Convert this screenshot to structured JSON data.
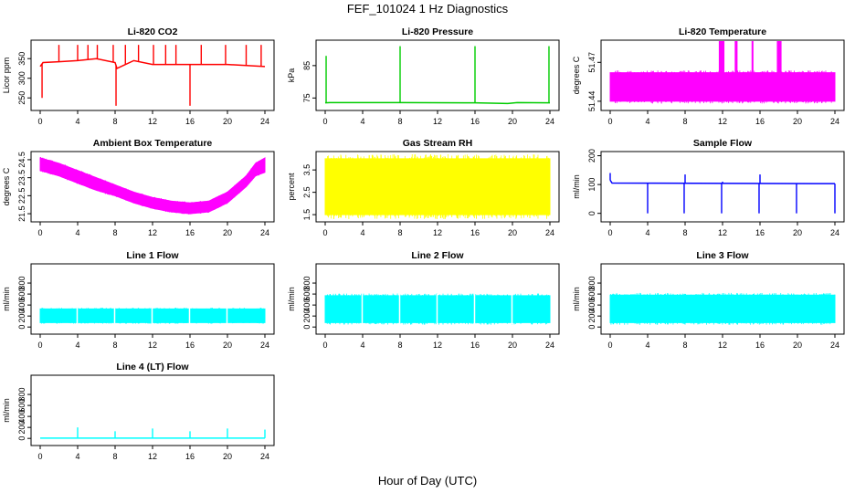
{
  "title": "FEF_101024  1 Hz Diagnostics",
  "xlabel": "Hour of Day (UTC)",
  "chart_data": [
    {
      "id": "co2",
      "type": "line",
      "title": "Li-820 CO2",
      "ylabel": "Licor ppm",
      "color": "#ff0000",
      "xlim": [
        0,
        24
      ],
      "ylim": [
        225,
        390
      ],
      "xticks": [
        0,
        4,
        8,
        12,
        16,
        20,
        24
      ],
      "yticks": [
        250,
        300,
        350
      ],
      "series": [
        {
          "x": [
            0,
            0.3,
            2,
            4,
            6,
            8,
            8.2,
            10,
            12,
            16,
            20,
            24
          ],
          "y": [
            330,
            340,
            342,
            345,
            350,
            340,
            325,
            345,
            335,
            335,
            335,
            330
          ]
        }
      ],
      "spikes": [
        {
          "x": 0.2,
          "y": 250
        },
        {
          "x": 2,
          "y": 385
        },
        {
          "x": 4,
          "y": 385
        },
        {
          "x": 5.1,
          "y": 385
        },
        {
          "x": 6.1,
          "y": 385
        },
        {
          "x": 7.8,
          "y": 385
        },
        {
          "x": 8.1,
          "y": 230
        },
        {
          "x": 9.1,
          "y": 385
        },
        {
          "x": 10.5,
          "y": 385
        },
        {
          "x": 12.1,
          "y": 385
        },
        {
          "x": 13.4,
          "y": 385
        },
        {
          "x": 14.5,
          "y": 385
        },
        {
          "x": 16,
          "y": 230
        },
        {
          "x": 17.2,
          "y": 385
        },
        {
          "x": 19.8,
          "y": 385
        },
        {
          "x": 22,
          "y": 385
        },
        {
          "x": 23.6,
          "y": 385
        }
      ]
    },
    {
      "id": "pressure",
      "type": "line",
      "title": "Li-820 Pressure",
      "ylabel": "kPa",
      "color": "#00cc00",
      "xlim": [
        0,
        24
      ],
      "ylim": [
        72,
        92
      ],
      "xticks": [
        0,
        4,
        8,
        12,
        16,
        20,
        24
      ],
      "yticks": [
        75,
        85
      ],
      "series": [
        {
          "x": [
            0,
            0.5,
            8,
            16,
            19.5,
            20.5,
            24
          ],
          "y": [
            73.5,
            73.6,
            73.6,
            73.5,
            73.3,
            73.6,
            73.5
          ]
        }
      ],
      "spikes": [
        {
          "x": 0.1,
          "y": 88
        },
        {
          "x": 8,
          "y": 91
        },
        {
          "x": 16,
          "y": 91
        },
        {
          "x": 23.9,
          "y": 91
        }
      ]
    },
    {
      "id": "licor-temp",
      "type": "band",
      "title": "Li-820 Temperature",
      "ylabel": "degrees C",
      "color": "#ff00ff",
      "xlim": [
        0,
        24
      ],
      "ylim": [
        51.435,
        51.485
      ],
      "xticks": [
        0,
        4,
        8,
        12,
        16,
        20,
        24
      ],
      "yticks": [
        51.44,
        51.47
      ],
      "band": {
        "x": [
          0,
          24
        ],
        "low": 51.44,
        "high": 51.462
      },
      "bursts": [
        {
          "x0": 11.6,
          "x1": 12.2
        },
        {
          "x0": 13.3,
          "x1": 13.6
        },
        {
          "x0": 15.1,
          "x1": 15.3
        },
        {
          "x0": 17.8,
          "x1": 18.3
        }
      ]
    },
    {
      "id": "box-temp",
      "type": "band",
      "title": "Ambient Box Temperature",
      "ylabel": "degrees C",
      "color": "#ff00ff",
      "xlim": [
        0,
        24
      ],
      "ylim": [
        21.2,
        24.8
      ],
      "xticks": [
        0,
        4,
        8,
        12,
        16,
        20,
        24
      ],
      "yticks": [
        21.5,
        22.5,
        23.5,
        24.5
      ],
      "band": {
        "x": [
          0,
          2,
          4,
          6,
          8,
          10,
          12,
          14,
          16,
          18,
          20,
          22,
          23,
          24
        ],
        "low": [
          23.9,
          23.6,
          23.2,
          22.8,
          22.5,
          22.1,
          21.8,
          21.6,
          21.5,
          21.6,
          22.1,
          23.0,
          23.6,
          23.8
        ],
        "high": [
          24.6,
          24.3,
          23.9,
          23.5,
          23.1,
          22.7,
          22.4,
          22.2,
          22.1,
          22.2,
          22.7,
          23.6,
          24.3,
          24.6
        ]
      }
    },
    {
      "id": "rh",
      "type": "band",
      "title": "Gas Stream RH",
      "ylabel": "percent",
      "color": "#ffff00",
      "xlim": [
        0,
        24
      ],
      "ylim": [
        1.3,
        4.2
      ],
      "xticks": [
        0,
        4,
        8,
        12,
        16,
        20,
        24
      ],
      "yticks": [
        1.5,
        2.5,
        3.5
      ],
      "band": {
        "x": [
          0,
          24
        ],
        "low": 1.5,
        "high": 4.0
      }
    },
    {
      "id": "sample-flow",
      "type": "line",
      "title": "Sample Flow",
      "ylabel": "ml/min",
      "color": "#0000ff",
      "xlim": [
        0,
        24
      ],
      "ylim": [
        -20,
        205
      ],
      "xticks": [
        0,
        4,
        8,
        12,
        16,
        20,
        24
      ],
      "yticks": [
        0,
        100,
        200
      ],
      "series": [
        {
          "x": [
            0,
            0.2,
            24
          ],
          "y": [
            115,
            105,
            103
          ]
        }
      ],
      "spikes": [
        {
          "x": 0,
          "y": 140
        },
        {
          "x": 4,
          "y": 0
        },
        {
          "x": 7.9,
          "y": 0
        },
        {
          "x": 8,
          "y": 135
        },
        {
          "x": 11.9,
          "y": 0
        },
        {
          "x": 12,
          "y": 110
        },
        {
          "x": 15.9,
          "y": 0
        },
        {
          "x": 16,
          "y": 135
        },
        {
          "x": 19.9,
          "y": 0
        },
        {
          "x": 24,
          "y": 0
        }
      ]
    },
    {
      "id": "line1",
      "type": "band",
      "title": "Line 1 Flow",
      "ylabel": "ml/min",
      "color": "#00ffff",
      "xlim": [
        0,
        24
      ],
      "ylim": [
        -80,
        1100
      ],
      "xticks": [
        0,
        4,
        8,
        12,
        16,
        20,
        24
      ],
      "yticks": [
        0,
        200,
        400,
        600,
        800
      ],
      "band": {
        "x": [
          0,
          24
        ],
        "low": 80,
        "high": 330
      },
      "gaps": [
        3.95,
        7.95,
        11.95,
        15.95,
        19.95
      ]
    },
    {
      "id": "line2",
      "type": "band",
      "title": "Line 2 Flow",
      "ylabel": "ml/min",
      "color": "#00ffff",
      "xlim": [
        0,
        24
      ],
      "ylim": [
        -80,
        1100
      ],
      "xticks": [
        0,
        4,
        8,
        12,
        16,
        20,
        24
      ],
      "yticks": [
        0,
        200,
        400,
        600,
        800
      ],
      "band": {
        "x": [
          0,
          24
        ],
        "low": 80,
        "high": 570
      },
      "gaps": [
        3.95,
        7.95,
        11.95,
        15.95,
        19.95
      ]
    },
    {
      "id": "line3",
      "type": "band",
      "title": "Line 3 Flow",
      "ylabel": "ml/min",
      "color": "#00ffff",
      "xlim": [
        0,
        24
      ],
      "ylim": [
        -80,
        1100
      ],
      "xticks": [
        0,
        4,
        8,
        12,
        16,
        20,
        24
      ],
      "yticks": [
        0,
        200,
        400,
        600,
        800
      ],
      "band": {
        "x": [
          0,
          24
        ],
        "low": 80,
        "high": 580
      }
    },
    {
      "id": "line4",
      "type": "line",
      "title": "Line 4 (LT) Flow",
      "ylabel": "ml/min",
      "color": "#00ffff",
      "xlim": [
        0,
        24
      ],
      "ylim": [
        -80,
        1100
      ],
      "xticks": [
        0,
        4,
        8,
        12,
        16,
        20,
        24
      ],
      "yticks": [
        0,
        200,
        400,
        600,
        800
      ],
      "series": [
        {
          "x": [
            0,
            24
          ],
          "y": [
            5,
            5
          ]
        }
      ],
      "spikes": [
        {
          "x": 4,
          "y": 200
        },
        {
          "x": 8,
          "y": 130
        },
        {
          "x": 12,
          "y": 180
        },
        {
          "x": 16,
          "y": 130
        },
        {
          "x": 20,
          "y": 180
        },
        {
          "x": 24,
          "y": 160
        }
      ]
    }
  ]
}
